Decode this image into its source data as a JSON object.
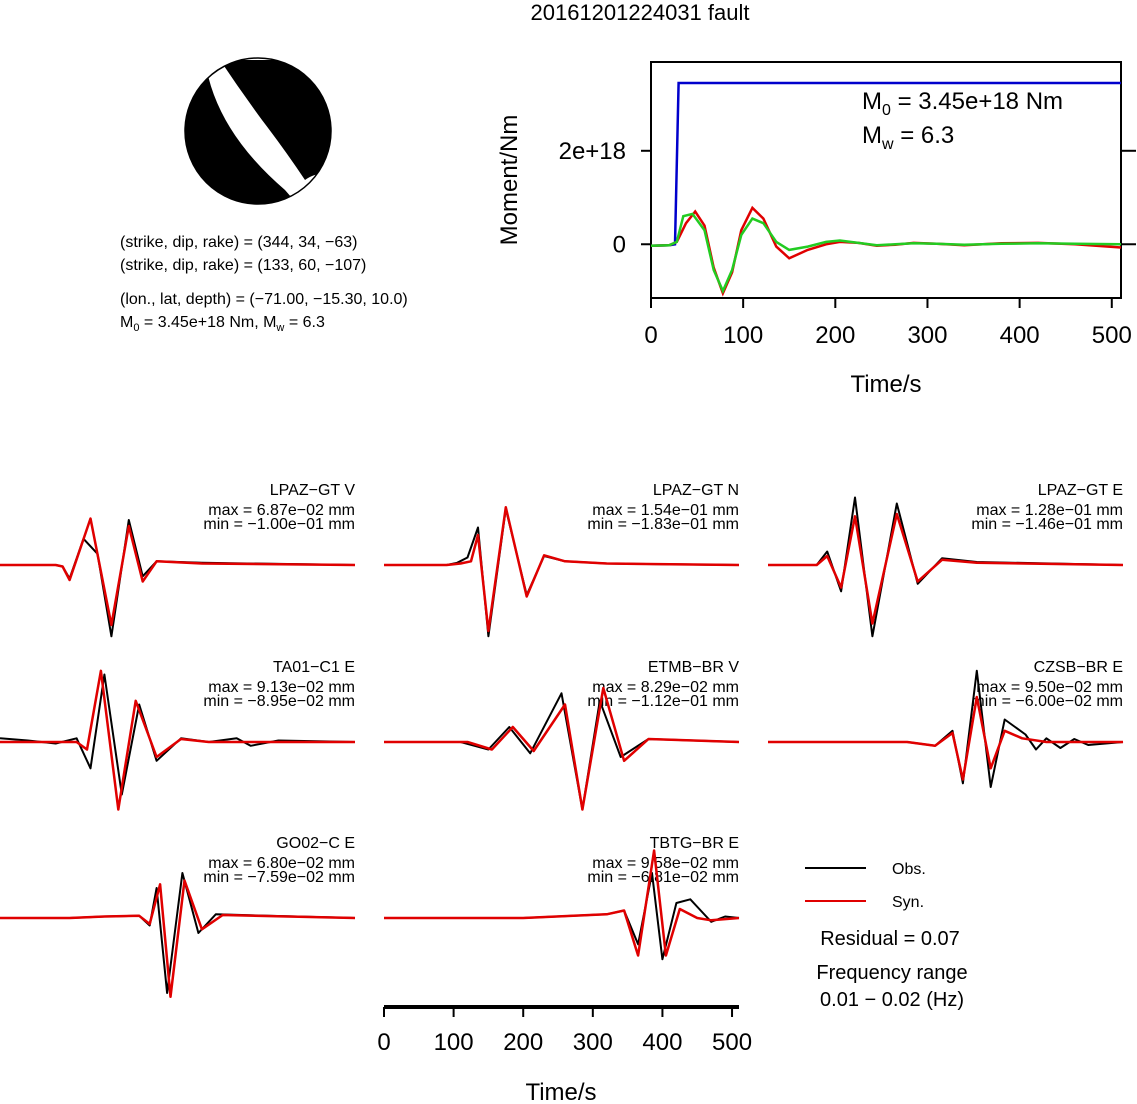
{
  "title": "20161201224031 fault",
  "colors": {
    "obs": "#000000",
    "syn": "#e00000",
    "moment": "#0000cc",
    "green": "#22cc22",
    "beachball": "#000000"
  },
  "solution": {
    "line1": "(strike, dip, rake) = (344, 34, −63)",
    "line2": "(strike, dip, rake) = (133, 60, −107)",
    "line3": "(lon., lat, depth) = (−71.00, −15.30, 10.0)",
    "m0_label": "M",
    "m0_sub": "0",
    "m0_val": " = 3.45e+18 Nm, M",
    "mw_sub": "w",
    "mw_val": " = 6.3"
  },
  "moment_plot": {
    "ylabel": "Moment/Nm",
    "xlabel": "Time/s",
    "ytick_labels": [
      "0",
      "2e+18"
    ],
    "xtick_labels": [
      "0",
      "100",
      "200",
      "300",
      "400",
      "500"
    ],
    "annot_m0": "M",
    "annot_m0_sub": "0",
    "annot_m0_val": " = 3.45e+18 Nm",
    "annot_mw": "M",
    "annot_mw_sub": "w",
    "annot_mw_val": " = 6.3"
  },
  "chart_data": [
    {
      "type": "line",
      "title": "",
      "xlabel": "Time/s",
      "ylabel": "Moment/Nm",
      "xlim": [
        0,
        510
      ],
      "ylim": [
        -1.15e+18,
        3.9e+18
      ],
      "series": [
        {
          "name": "",
          "color": "#0000cc",
          "x": [
            0,
            20,
            26,
            30,
            510
          ],
          "y": [
            -3e+16,
            -2e+16,
            0.0,
            3.45e+18,
            3.45e+18
          ]
        },
        {
          "name": "",
          "color": "#e00000",
          "x": [
            0,
            20,
            28,
            38,
            48,
            58,
            68,
            78,
            88,
            98,
            110,
            122,
            136,
            150,
            170,
            190,
            205,
            225,
            245,
            265,
            285,
            310,
            340,
            380,
            420,
            460,
            510
          ],
          "y": [
            -3e+16,
            -2e+16,
            5e+16,
            4.5e+17,
            7e+17,
            4e+17,
            -5e+17,
            -1.05e+18,
            -6e+17,
            3e+17,
            7.8e+17,
            5.5e+17,
            -5e+16,
            -3e+17,
            -1.2e+17,
            0.0,
            5e+16,
            3e+16,
            -3e+16,
            -1e+16,
            3e+16,
            1e+16,
            -2e+16,
            2e+16,
            3e+16,
            0.0,
            -7e+16
          ]
        },
        {
          "name": "",
          "color": "#22cc22",
          "x": [
            0,
            20,
            28,
            35,
            45,
            58,
            68,
            78,
            88,
            98,
            110,
            122,
            136,
            150,
            170,
            190,
            205,
            225,
            245,
            265,
            285,
            310,
            340,
            380,
            420,
            460,
            510
          ],
          "y": [
            -3e+16,
            -2e+16,
            5e+16,
            6e+17,
            6.5e+17,
            3e+17,
            -5.5e+17,
            -1e+18,
            -5.5e+17,
            2e+17,
            5.5e+17,
            4.5e+17,
            5e+16,
            -1.2e+17,
            -5e+16,
            5e+16,
            8e+16,
            3e+16,
            -2e+16,
            0.0,
            2e+16,
            1e+16,
            -1e+16,
            1e+16,
            2e+16,
            1e+16,
            0.0
          ]
        }
      ]
    },
    {
      "type": "line",
      "title": "",
      "xlabel": "Time/s",
      "xlim": [
        0,
        510
      ],
      "xtick_labels": [
        "0",
        "100",
        "200",
        "300",
        "400",
        "500"
      ],
      "traces": [
        {
          "station": "LPAZ−GT V",
          "max": "max = 6.87e−02 mm",
          "min": "min = −1.00e−01 mm",
          "obs": [
            [
              0,
              0
            ],
            [
              80,
              0
            ],
            [
              90,
              -0.02
            ],
            [
              100,
              -0.18
            ],
            [
              120,
              0.35
            ],
            [
              140,
              0.15
            ],
            [
              160,
              -0.95
            ],
            [
              185,
              0.6
            ],
            [
              205,
              -0.15
            ],
            [
              225,
              0.05
            ],
            [
              290,
              0.03
            ],
            [
              510,
              0
            ]
          ],
          "syn": [
            [
              0,
              0
            ],
            [
              80,
              0
            ],
            [
              90,
              -0.02
            ],
            [
              100,
              -0.2
            ],
            [
              130,
              0.62
            ],
            [
              160,
              -0.8
            ],
            [
              185,
              0.52
            ],
            [
              205,
              -0.22
            ],
            [
              225,
              0.05
            ],
            [
              290,
              0.02
            ],
            [
              510,
              0
            ]
          ]
        },
        {
          "station": "LPAZ−GT N",
          "max": "max = 1.54e−01 mm",
          "min": "min = −1.83e−01 mm",
          "obs": [
            [
              0,
              0
            ],
            [
              90,
              0
            ],
            [
              105,
              0.03
            ],
            [
              120,
              0.1
            ],
            [
              135,
              0.5
            ],
            [
              150,
              -0.95
            ],
            [
              175,
              0.75
            ],
            [
              205,
              -0.4
            ],
            [
              230,
              0.12
            ],
            [
              260,
              0.05
            ],
            [
              320,
              0.02
            ],
            [
              510,
              0
            ]
          ],
          "syn": [
            [
              0,
              0
            ],
            [
              90,
              0
            ],
            [
              110,
              0.02
            ],
            [
              125,
              0.05
            ],
            [
              135,
              0.4
            ],
            [
              150,
              -0.88
            ],
            [
              175,
              0.77
            ],
            [
              205,
              -0.42
            ],
            [
              230,
              0.13
            ],
            [
              260,
              0.05
            ],
            [
              320,
              0.02
            ],
            [
              510,
              0
            ]
          ]
        },
        {
          "station": "LPAZ−GT E",
          "max": "max = 1.28e−01 mm",
          "min": "min = −1.46e−01 mm",
          "obs": [
            [
              0,
              0
            ],
            [
              70,
              0
            ],
            [
              85,
              0.18
            ],
            [
              105,
              -0.35
            ],
            [
              125,
              0.9
            ],
            [
              150,
              -0.95
            ],
            [
              185,
              0.82
            ],
            [
              215,
              -0.25
            ],
            [
              250,
              0.09
            ],
            [
              300,
              0.04
            ],
            [
              510,
              0
            ]
          ],
          "syn": [
            [
              0,
              0
            ],
            [
              70,
              0
            ],
            [
              85,
              0.12
            ],
            [
              105,
              -0.3
            ],
            [
              125,
              0.65
            ],
            [
              150,
              -0.78
            ],
            [
              185,
              0.68
            ],
            [
              215,
              -0.22
            ],
            [
              250,
              0.07
            ],
            [
              300,
              0.03
            ],
            [
              510,
              0
            ]
          ]
        },
        {
          "station": "TA01−C1 E",
          "max": "max = 9.13e−02 mm",
          "min": "min = −8.95e−02 mm",
          "obs": [
            [
              0,
              0.05
            ],
            [
              40,
              0.02
            ],
            [
              80,
              -0.02
            ],
            [
              110,
              0.05
            ],
            [
              130,
              -0.35
            ],
            [
              150,
              0.9
            ],
            [
              175,
              -0.7
            ],
            [
              200,
              0.5
            ],
            [
              225,
              -0.25
            ],
            [
              260,
              0.05
            ],
            [
              300,
              0.0
            ],
            [
              340,
              0.05
            ],
            [
              360,
              -0.05
            ],
            [
              400,
              0.02
            ],
            [
              510,
              0
            ]
          ],
          "syn": [
            [
              0,
              0
            ],
            [
              80,
              0
            ],
            [
              110,
              0
            ],
            [
              125,
              -0.1
            ],
            [
              145,
              0.95
            ],
            [
              170,
              -0.9
            ],
            [
              195,
              0.55
            ],
            [
              225,
              -0.2
            ],
            [
              260,
              0.04
            ],
            [
              300,
              0.0
            ],
            [
              510,
              0
            ]
          ]
        },
        {
          "station": "ETMB−BR V",
          "max": "max = 8.29e−02 mm",
          "min": "min = −1.12e−01 mm",
          "obs": [
            [
              0,
              0
            ],
            [
              110,
              0
            ],
            [
              150,
              -0.1
            ],
            [
              180,
              0.2
            ],
            [
              210,
              -0.15
            ],
            [
              255,
              0.65
            ],
            [
              285,
              -0.9
            ],
            [
              310,
              0.55
            ],
            [
              340,
              -0.2
            ],
            [
              380,
              0.04
            ],
            [
              510,
              0
            ]
          ],
          "syn": [
            [
              0,
              0
            ],
            [
              120,
              0
            ],
            [
              155,
              -0.1
            ],
            [
              185,
              0.2
            ],
            [
              215,
              -0.12
            ],
            [
              260,
              0.5
            ],
            [
              285,
              -0.9
            ],
            [
              315,
              0.72
            ],
            [
              345,
              -0.25
            ],
            [
              380,
              0.04
            ],
            [
              510,
              0
            ]
          ]
        },
        {
          "station": "CZSB−BR E",
          "max": "max = 9.50e−02 mm",
          "min": "min = −6.00e−02 mm",
          "obs": [
            [
              0,
              0
            ],
            [
              200,
              0
            ],
            [
              240,
              -0.05
            ],
            [
              265,
              0.15
            ],
            [
              280,
              -0.55
            ],
            [
              300,
              0.95
            ],
            [
              320,
              -0.6
            ],
            [
              340,
              0.3
            ],
            [
              355,
              0.2
            ],
            [
              370,
              0.1
            ],
            [
              385,
              -0.1
            ],
            [
              400,
              0.05
            ],
            [
              420,
              -0.08
            ],
            [
              440,
              0.04
            ],
            [
              460,
              -0.04
            ],
            [
              510,
              0
            ]
          ],
          "syn": [
            [
              0,
              0
            ],
            [
              200,
              0
            ],
            [
              240,
              -0.05
            ],
            [
              265,
              0.12
            ],
            [
              280,
              -0.5
            ],
            [
              300,
              0.6
            ],
            [
              320,
              -0.35
            ],
            [
              340,
              0.15
            ],
            [
              365,
              0.05
            ],
            [
              400,
              0.0
            ],
            [
              510,
              0
            ]
          ]
        },
        {
          "station": "GO02−C E",
          "max": "max = 6.80e−02 mm",
          "min": "min = −7.59e−02 mm",
          "obs": [
            [
              0,
              0
            ],
            [
              100,
              0
            ],
            [
              150,
              0.02
            ],
            [
              200,
              0.03
            ],
            [
              215,
              -0.1
            ],
            [
              225,
              0.4
            ],
            [
              240,
              -1.0
            ],
            [
              262,
              0.6
            ],
            [
              285,
              -0.2
            ],
            [
              310,
              0.05
            ],
            [
              510,
              0
            ]
          ],
          "syn": [
            [
              0,
              0
            ],
            [
              100,
              0
            ],
            [
              150,
              0.02
            ],
            [
              200,
              0.03
            ],
            [
              215,
              -0.08
            ],
            [
              230,
              0.45
            ],
            [
              245,
              -1.05
            ],
            [
              265,
              0.5
            ],
            [
              290,
              -0.15
            ],
            [
              320,
              0.04
            ],
            [
              510,
              0
            ]
          ]
        },
        {
          "station": "TBTG−BR E",
          "max": "max = 9.58e−02 mm",
          "min": "min = −6.81e−02 mm",
          "obs": [
            [
              0,
              0
            ],
            [
              200,
              0
            ],
            [
              320,
              0.05
            ],
            [
              345,
              0.1
            ],
            [
              365,
              -0.35
            ],
            [
              385,
              0.6
            ],
            [
              400,
              -0.55
            ],
            [
              420,
              0.2
            ],
            [
              440,
              0.25
            ],
            [
              455,
              0.1
            ],
            [
              470,
              -0.05
            ],
            [
              490,
              0.02
            ],
            [
              510,
              0
            ]
          ],
          "syn": [
            [
              0,
              0
            ],
            [
              200,
              0
            ],
            [
              320,
              0.05
            ],
            [
              345,
              0.1
            ],
            [
              365,
              -0.5
            ],
            [
              388,
              0.9
            ],
            [
              405,
              -0.5
            ],
            [
              425,
              0.12
            ],
            [
              450,
              0.0
            ],
            [
              470,
              -0.03
            ],
            [
              510,
              0
            ]
          ]
        }
      ]
    }
  ],
  "legend": {
    "obs_label": "Obs.",
    "syn_label": "Syn."
  },
  "residual": "Residual = 0.07",
  "freq_label": "Frequency range",
  "freq_value": "0.01 − 0.02 (Hz)"
}
